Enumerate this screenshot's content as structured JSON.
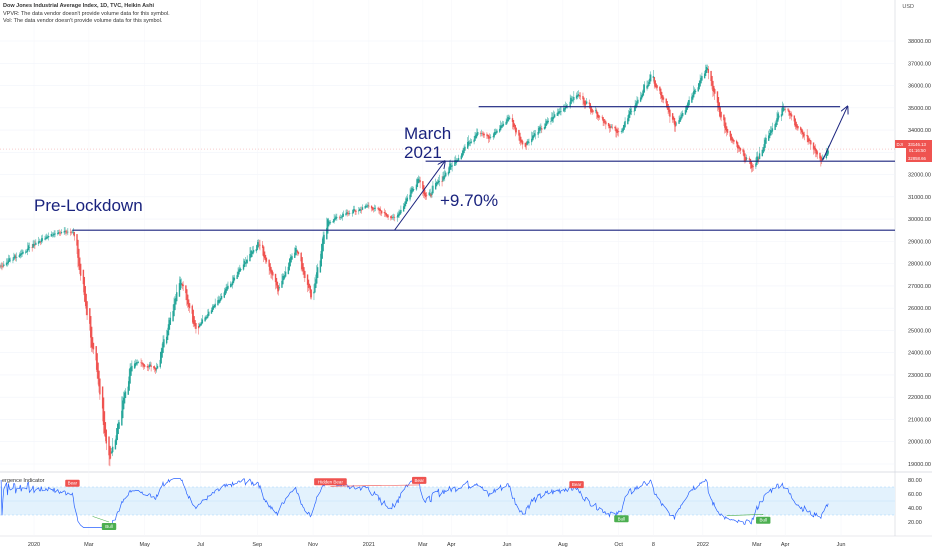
{
  "header": {
    "title": "Dow Jones Industrial Average Index, 1D, TVC, Heikin Ashi",
    "line2": "VPVR: The data vendor doesn't provide volume data for this symbol.",
    "line3": "Vol: The data vendor doesn't provide volume data for this symbol."
  },
  "currency": "USD",
  "colors": {
    "up": "#26a69a",
    "down": "#ef5350",
    "line": "#1a237e",
    "rsi_line": "#2962ff",
    "rsi_band": "#e3f2fd",
    "bear_tag": "#ef5350",
    "bull_tag": "#4caf50"
  },
  "price_labels": {
    "last": "33146.13",
    "sub": "01:16:50",
    "level": "32858.66",
    "symbol": "DJI"
  },
  "annotations": {
    "pre_lockdown": "Pre-Lockdown",
    "march_line1": "March",
    "march_line2": "2021",
    "pct": "+9.70%"
  },
  "indicator": {
    "name": "Divergence Indicator",
    "visible_name": "ergence Indicator",
    "y_ticks": [
      "80.00",
      "60.00",
      "40.00",
      "20.00"
    ],
    "tags": [
      {
        "text": "Bear",
        "type": "bear",
        "x_date": "2020-02-12",
        "rsi": 69
      },
      {
        "text": "Bull",
        "type": "bull",
        "x_date": "2020-03-23",
        "rsi": 20
      },
      {
        "text": "Hidden Bear",
        "type": "bear",
        "x_date": "2020-11-20",
        "rsi": 71
      },
      {
        "text": "Bear",
        "type": "bear",
        "x_date": "2021-02-25",
        "rsi": 73
      },
      {
        "text": "Bear",
        "type": "bear",
        "x_date": "2021-08-16",
        "rsi": 67
      },
      {
        "text": "Bull",
        "type": "bull",
        "x_date": "2021-10-04",
        "rsi": 31
      },
      {
        "text": "Bull",
        "type": "bull",
        "x_date": "2022-03-08",
        "rsi": 29
      }
    ]
  },
  "chart_data": {
    "type": "candlestick",
    "series_style": "Heikin Ashi",
    "timeframe": "1D",
    "y_ticks": [
      "38000.00",
      "37000.00",
      "36000.00",
      "35000.00",
      "34000.00",
      "33000.00",
      "32000.00",
      "31000.00",
      "30000.00",
      "29000.00",
      "28000.00",
      "27000.00",
      "26000.00",
      "25000.00",
      "24000.00",
      "23000.00",
      "22000.00",
      "21000.00",
      "20000.00",
      "19000.00"
    ],
    "ylim": [
      18600,
      38600
    ],
    "x_ticks": [
      "2020",
      "Mar",
      "May",
      "Jul",
      "Sep",
      "Nov",
      "2021",
      "Mar",
      "Apr",
      "Jun",
      "Aug",
      "Oct",
      "8",
      "2022",
      "Mar",
      "Apr",
      "Jun"
    ],
    "x_tick_dates": [
      "2020-01-01",
      "2020-03-01",
      "2020-05-01",
      "2020-07-01",
      "2020-09-01",
      "2020-11-01",
      "2021-01-01",
      "2021-03-01",
      "2021-04-01",
      "2021-06-01",
      "2021-08-01",
      "2021-10-01",
      "2021-11-08",
      "2022-01-01",
      "2022-03-01",
      "2022-04-01",
      "2022-06-01"
    ],
    "key_points": [
      {
        "date": "2019-11-25",
        "close": 27900
      },
      {
        "date": "2020-01-17",
        "close": 29300
      },
      {
        "date": "2020-02-12",
        "close": 29500
      },
      {
        "date": "2020-02-28",
        "close": 25700
      },
      {
        "date": "2020-03-23",
        "close": 19100
      },
      {
        "date": "2020-04-17",
        "close": 23600
      },
      {
        "date": "2020-05-13",
        "close": 23300
      },
      {
        "date": "2020-06-08",
        "close": 27300
      },
      {
        "date": "2020-06-26",
        "close": 25100
      },
      {
        "date": "2020-07-24",
        "close": 26500
      },
      {
        "date": "2020-09-02",
        "close": 29000
      },
      {
        "date": "2020-09-23",
        "close": 26800
      },
      {
        "date": "2020-10-12",
        "close": 28800
      },
      {
        "date": "2020-10-30",
        "close": 26500
      },
      {
        "date": "2020-11-16",
        "close": 29900
      },
      {
        "date": "2020-12-31",
        "close": 30600
      },
      {
        "date": "2021-01-29",
        "close": 30000
      },
      {
        "date": "2021-02-24",
        "close": 31900
      },
      {
        "date": "2021-03-04",
        "close": 30900
      },
      {
        "date": "2021-04-29",
        "close": 34000
      },
      {
        "date": "2021-05-12",
        "close": 33600
      },
      {
        "date": "2021-06-03",
        "close": 34600
      },
      {
        "date": "2021-06-18",
        "close": 33300
      },
      {
        "date": "2021-08-16",
        "close": 35600
      },
      {
        "date": "2021-09-30",
        "close": 33800
      },
      {
        "date": "2021-11-05",
        "close": 36400
      },
      {
        "date": "2021-12-01",
        "close": 34200
      },
      {
        "date": "2022-01-04",
        "close": 36800
      },
      {
        "date": "2022-01-27",
        "close": 33800
      },
      {
        "date": "2022-02-24",
        "close": 32300
      },
      {
        "date": "2022-03-29",
        "close": 35100
      },
      {
        "date": "2022-05-03",
        "close": 33100
      },
      {
        "date": "2022-05-10",
        "close": 32600
      },
      {
        "date": "2022-05-18",
        "close": 33146
      }
    ],
    "levels": [
      {
        "name": "pre_lockdown",
        "value": 29500,
        "from": "2020-02-12",
        "to": "2022-06-30"
      },
      {
        "name": "march_2021",
        "value": 32600,
        "from": "2021-03-04",
        "to": "2022-06-30"
      },
      {
        "name": "top",
        "value": 35050,
        "from": "2021-05-01",
        "to": "2022-05-31"
      }
    ],
    "arrows": [
      {
        "from_date": "2021-01-29",
        "from": 29500,
        "to_date": "2021-03-25",
        "to": 32600
      },
      {
        "from_date": "2022-05-12",
        "from": 32650,
        "to_date": "2022-06-08",
        "to": 35050
      }
    ],
    "rsi_band": [
      30,
      70
    ],
    "rsi_ylim": [
      10,
      85
    ]
  }
}
